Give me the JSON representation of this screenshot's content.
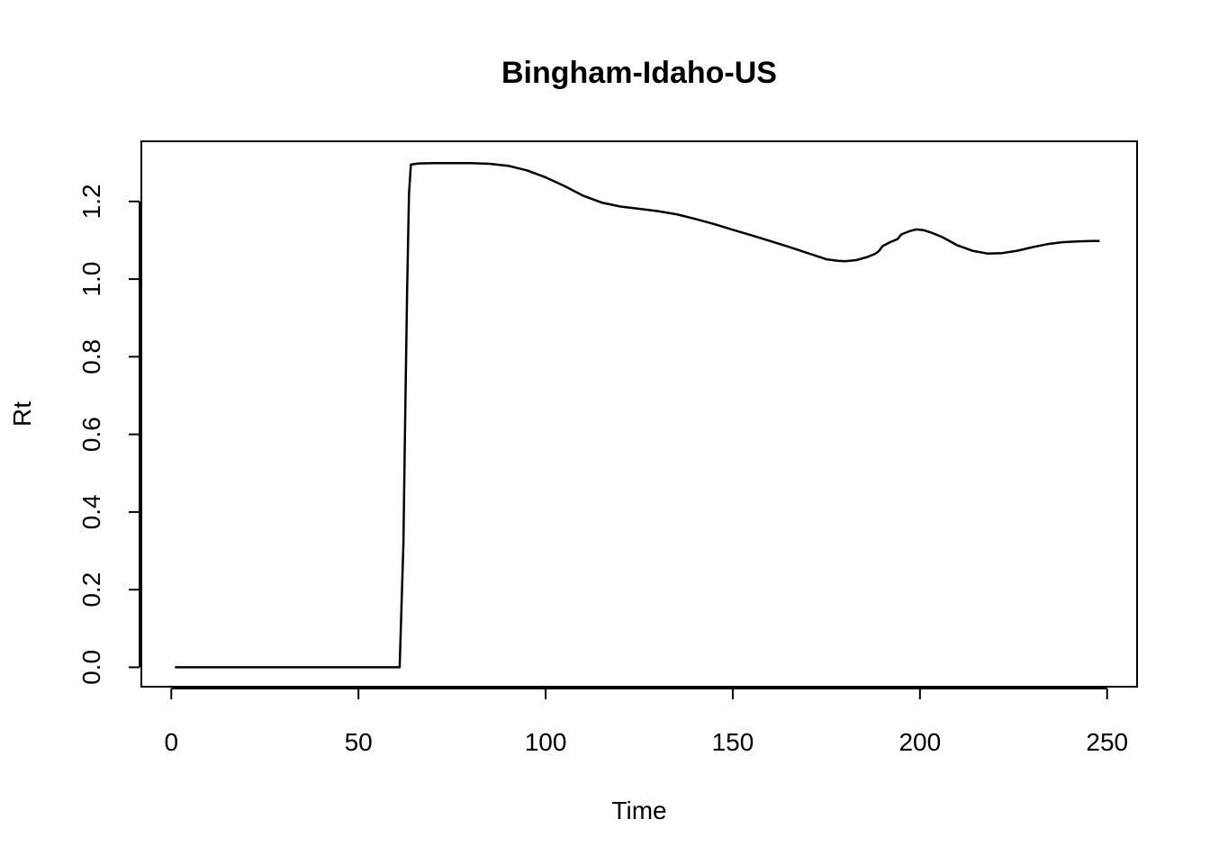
{
  "chart_data": {
    "type": "line",
    "title": "Bingham-Idaho-US",
    "xlabel": "Time",
    "ylabel": "Rt",
    "xlim": [
      -8,
      258
    ],
    "ylim": [
      -0.05,
      1.355
    ],
    "xticks": [
      0,
      50,
      100,
      150,
      200,
      250
    ],
    "xtick_labels": [
      "0",
      "50",
      "100",
      "150",
      "200",
      "250"
    ],
    "yticks": [
      0.0,
      0.2,
      0.4,
      0.6,
      0.8,
      1.0,
      1.2
    ],
    "ytick_labels": [
      "0.0",
      "0.2",
      "0.4",
      "0.6",
      "0.8",
      "1.0",
      "1.2"
    ],
    "grid": false,
    "color": "#000000",
    "series": [
      {
        "name": "Rt",
        "x": [
          1,
          10,
          20,
          30,
          40,
          50,
          61,
          62,
          62.5,
          63,
          63.5,
          64,
          66,
          70,
          75,
          80,
          85,
          90,
          95,
          100,
          105,
          110,
          115,
          120,
          125,
          130,
          135,
          140,
          145,
          150,
          155,
          160,
          165,
          170,
          175,
          178,
          180,
          183,
          186,
          188,
          189,
          190,
          192,
          194,
          195,
          197,
          199,
          201,
          203,
          206,
          210,
          214,
          218,
          222,
          226,
          230,
          234,
          238,
          242,
          246,
          248
        ],
        "y": [
          0,
          0,
          0,
          0,
          0,
          0,
          0,
          0.32,
          0.65,
          0.97,
          1.22,
          1.295,
          1.298,
          1.299,
          1.299,
          1.299,
          1.297,
          1.292,
          1.28,
          1.262,
          1.24,
          1.215,
          1.197,
          1.187,
          1.181,
          1.175,
          1.167,
          1.155,
          1.142,
          1.127,
          1.113,
          1.098,
          1.083,
          1.067,
          1.051,
          1.047,
          1.046,
          1.049,
          1.057,
          1.065,
          1.072,
          1.085,
          1.095,
          1.103,
          1.115,
          1.123,
          1.128,
          1.126,
          1.12,
          1.108,
          1.087,
          1.073,
          1.066,
          1.067,
          1.073,
          1.082,
          1.09,
          1.095,
          1.097,
          1.098,
          1.098
        ]
      }
    ]
  }
}
